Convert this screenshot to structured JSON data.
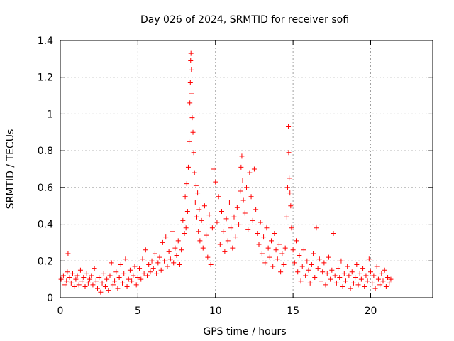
{
  "chart_data": {
    "type": "scatter",
    "title": "Day 026 of 2024, SRMTID for receiver sofi",
    "xlabel": "GPS time / hours",
    "ylabel": "SRMTID / TECUs",
    "xlim": [
      0,
      24
    ],
    "ylim": [
      0,
      1.4
    ],
    "xticks": [
      0,
      5,
      10,
      15,
      20
    ],
    "xtick_labels": [
      "0",
      "5",
      "10",
      "15",
      "20"
    ],
    "yticks": [
      0,
      0.2,
      0.4,
      0.6,
      0.8,
      1,
      1.2,
      1.4
    ],
    "ytick_labels": [
      "0",
      "0.2",
      "0.4",
      "0.6",
      "0.8",
      "1",
      "1.2",
      "1.4"
    ],
    "grid": true,
    "marker": "plus",
    "color": "#ff0000",
    "series": [
      {
        "name": "SRMTID",
        "points": [
          [
            0.05,
            0.1
          ],
          [
            0.2,
            0.12
          ],
          [
            0.3,
            0.07
          ],
          [
            0.4,
            0.09
          ],
          [
            0.45,
            0.14
          ],
          [
            0.5,
            0.24
          ],
          [
            0.6,
            0.11
          ],
          [
            0.7,
            0.08
          ],
          [
            0.8,
            0.13
          ],
          [
            0.9,
            0.06
          ],
          [
            1.0,
            0.1
          ],
          [
            1.1,
            0.12
          ],
          [
            1.2,
            0.07
          ],
          [
            1.3,
            0.15
          ],
          [
            1.4,
            0.09
          ],
          [
            1.5,
            0.11
          ],
          [
            1.6,
            0.06
          ],
          [
            1.7,
            0.13
          ],
          [
            1.8,
            0.08
          ],
          [
            1.9,
            0.1
          ],
          [
            2.0,
            0.12
          ],
          [
            2.1,
            0.07
          ],
          [
            2.2,
            0.16
          ],
          [
            2.3,
            0.09
          ],
          [
            2.4,
            0.05
          ],
          [
            2.5,
            0.11
          ],
          [
            2.6,
            0.03
          ],
          [
            2.7,
            0.08
          ],
          [
            2.8,
            0.13
          ],
          [
            2.9,
            0.06
          ],
          [
            3.0,
            0.1
          ],
          [
            3.1,
            0.04
          ],
          [
            3.2,
            0.12
          ],
          [
            3.3,
            0.19
          ],
          [
            3.4,
            0.07
          ],
          [
            3.5,
            0.09
          ],
          [
            3.6,
            0.14
          ],
          [
            3.7,
            0.05
          ],
          [
            3.8,
            0.11
          ],
          [
            3.9,
            0.18
          ],
          [
            4.0,
            0.08
          ],
          [
            4.1,
            0.13
          ],
          [
            4.2,
            0.21
          ],
          [
            4.3,
            0.06
          ],
          [
            4.4,
            0.1
          ],
          [
            4.5,
            0.15
          ],
          [
            4.6,
            0.09
          ],
          [
            4.7,
            0.12
          ],
          [
            4.8,
            0.17
          ],
          [
            4.9,
            0.07
          ],
          [
            5.0,
            0.11
          ],
          [
            5.1,
            0.16
          ],
          [
            5.2,
            0.1
          ],
          [
            5.3,
            0.21
          ],
          [
            5.4,
            0.13
          ],
          [
            5.5,
            0.26
          ],
          [
            5.6,
            0.12
          ],
          [
            5.7,
            0.18
          ],
          [
            5.8,
            0.14
          ],
          [
            5.9,
            0.2
          ],
          [
            6.0,
            0.16
          ],
          [
            6.1,
            0.24
          ],
          [
            6.2,
            0.13
          ],
          [
            6.3,
            0.19
          ],
          [
            6.4,
            0.22
          ],
          [
            6.5,
            0.15
          ],
          [
            6.6,
            0.3
          ],
          [
            6.7,
            0.2
          ],
          [
            6.8,
            0.33
          ],
          [
            6.9,
            0.17
          ],
          [
            7.0,
            0.25
          ],
          [
            7.1,
            0.21
          ],
          [
            7.2,
            0.36
          ],
          [
            7.3,
            0.19
          ],
          [
            7.4,
            0.27
          ],
          [
            7.5,
            0.23
          ],
          [
            7.6,
            0.31
          ],
          [
            7.7,
            0.18
          ],
          [
            7.8,
            0.26
          ],
          [
            7.9,
            0.42
          ],
          [
            8.0,
            0.35
          ],
          [
            8.05,
            0.55
          ],
          [
            8.1,
            0.38
          ],
          [
            8.15,
            0.62
          ],
          [
            8.2,
            0.47
          ],
          [
            8.25,
            0.71
          ],
          [
            8.3,
            0.85
          ],
          [
            8.35,
            1.06
          ],
          [
            8.38,
            1.17
          ],
          [
            8.4,
            1.29
          ],
          [
            8.42,
            1.33
          ],
          [
            8.45,
            1.24
          ],
          [
            8.48,
            1.11
          ],
          [
            8.5,
            0.98
          ],
          [
            8.55,
            0.9
          ],
          [
            8.6,
            0.79
          ],
          [
            8.65,
            0.68
          ],
          [
            8.7,
            0.52
          ],
          [
            8.75,
            0.61
          ],
          [
            8.8,
            0.44
          ],
          [
            8.85,
            0.57
          ],
          [
            8.9,
            0.36
          ],
          [
            8.95,
            0.48
          ],
          [
            9.0,
            0.31
          ],
          [
            9.1,
            0.42
          ],
          [
            9.2,
            0.27
          ],
          [
            9.3,
            0.5
          ],
          [
            9.4,
            0.34
          ],
          [
            9.5,
            0.22
          ],
          [
            9.6,
            0.45
          ],
          [
            9.7,
            0.18
          ],
          [
            9.8,
            0.38
          ],
          [
            9.9,
            0.7
          ],
          [
            10.0,
            0.63
          ],
          [
            10.1,
            0.41
          ],
          [
            10.2,
            0.55
          ],
          [
            10.3,
            0.29
          ],
          [
            10.4,
            0.47
          ],
          [
            10.5,
            0.36
          ],
          [
            10.6,
            0.25
          ],
          [
            10.7,
            0.43
          ],
          [
            10.8,
            0.31
          ],
          [
            10.9,
            0.52
          ],
          [
            11.0,
            0.38
          ],
          [
            11.1,
            0.27
          ],
          [
            11.2,
            0.44
          ],
          [
            11.3,
            0.33
          ],
          [
            11.4,
            0.49
          ],
          [
            11.5,
            0.4
          ],
          [
            11.6,
            0.58
          ],
          [
            11.65,
            0.71
          ],
          [
            11.7,
            0.77
          ],
          [
            11.75,
            0.64
          ],
          [
            11.8,
            0.53
          ],
          [
            11.9,
            0.46
          ],
          [
            12.0,
            0.6
          ],
          [
            12.1,
            0.37
          ],
          [
            12.2,
            0.68
          ],
          [
            12.3,
            0.55
          ],
          [
            12.4,
            0.42
          ],
          [
            12.5,
            0.7
          ],
          [
            12.6,
            0.48
          ],
          [
            12.7,
            0.35
          ],
          [
            12.8,
            0.29
          ],
          [
            12.9,
            0.41
          ],
          [
            13.0,
            0.24
          ],
          [
            13.1,
            0.33
          ],
          [
            13.2,
            0.19
          ],
          [
            13.3,
            0.38
          ],
          [
            13.4,
            0.27
          ],
          [
            13.5,
            0.22
          ],
          [
            13.6,
            0.31
          ],
          [
            13.7,
            0.17
          ],
          [
            13.8,
            0.35
          ],
          [
            13.9,
            0.26
          ],
          [
            14.0,
            0.21
          ],
          [
            14.1,
            0.29
          ],
          [
            14.2,
            0.14
          ],
          [
            14.3,
            0.24
          ],
          [
            14.4,
            0.18
          ],
          [
            14.5,
            0.27
          ],
          [
            14.6,
            0.44
          ],
          [
            14.65,
            0.6
          ],
          [
            14.7,
            0.93
          ],
          [
            14.72,
            0.79
          ],
          [
            14.75,
            0.65
          ],
          [
            14.8,
            0.57
          ],
          [
            14.85,
            0.5
          ],
          [
            14.9,
            0.38
          ],
          [
            15.0,
            0.26
          ],
          [
            15.1,
            0.19
          ],
          [
            15.2,
            0.31
          ],
          [
            15.3,
            0.14
          ],
          [
            15.4,
            0.23
          ],
          [
            15.5,
            0.09
          ],
          [
            15.6,
            0.17
          ],
          [
            15.7,
            0.26
          ],
          [
            15.8,
            0.12
          ],
          [
            15.9,
            0.2
          ],
          [
            16.0,
            0.15
          ],
          [
            16.1,
            0.08
          ],
          [
            16.2,
            0.18
          ],
          [
            16.3,
            0.24
          ],
          [
            16.4,
            0.11
          ],
          [
            16.5,
            0.38
          ],
          [
            16.6,
            0.16
          ],
          [
            16.7,
            0.21
          ],
          [
            16.8,
            0.09
          ],
          [
            16.9,
            0.14
          ],
          [
            17.0,
            0.19
          ],
          [
            17.1,
            0.07
          ],
          [
            17.2,
            0.13
          ],
          [
            17.3,
            0.22
          ],
          [
            17.4,
            0.1
          ],
          [
            17.5,
            0.15
          ],
          [
            17.6,
            0.35
          ],
          [
            17.7,
            0.12
          ],
          [
            17.8,
            0.08
          ],
          [
            17.9,
            0.16
          ],
          [
            18.0,
            0.11
          ],
          [
            18.1,
            0.2
          ],
          [
            18.2,
            0.06
          ],
          [
            18.3,
            0.13
          ],
          [
            18.4,
            0.09
          ],
          [
            18.5,
            0.17
          ],
          [
            18.6,
            0.12
          ],
          [
            18.7,
            0.05
          ],
          [
            18.8,
            0.14
          ],
          [
            18.9,
            0.08
          ],
          [
            19.0,
            0.11
          ],
          [
            19.1,
            0.18
          ],
          [
            19.2,
            0.07
          ],
          [
            19.3,
            0.13
          ],
          [
            19.4,
            0.1
          ],
          [
            19.5,
            0.16
          ],
          [
            19.6,
            0.06
          ],
          [
            19.7,
            0.12
          ],
          [
            19.8,
            0.09
          ],
          [
            19.9,
            0.21
          ],
          [
            20.0,
            0.14
          ],
          [
            20.1,
            0.08
          ],
          [
            20.2,
            0.12
          ],
          [
            20.3,
            0.05
          ],
          [
            20.4,
            0.17
          ],
          [
            20.5,
            0.1
          ],
          [
            20.6,
            0.07
          ],
          [
            20.7,
            0.13
          ],
          [
            20.8,
            0.09
          ],
          [
            20.9,
            0.15
          ],
          [
            21.0,
            0.06
          ],
          [
            21.1,
            0.11
          ],
          [
            21.2,
            0.08
          ],
          [
            21.3,
            0.1
          ]
        ]
      }
    ]
  }
}
